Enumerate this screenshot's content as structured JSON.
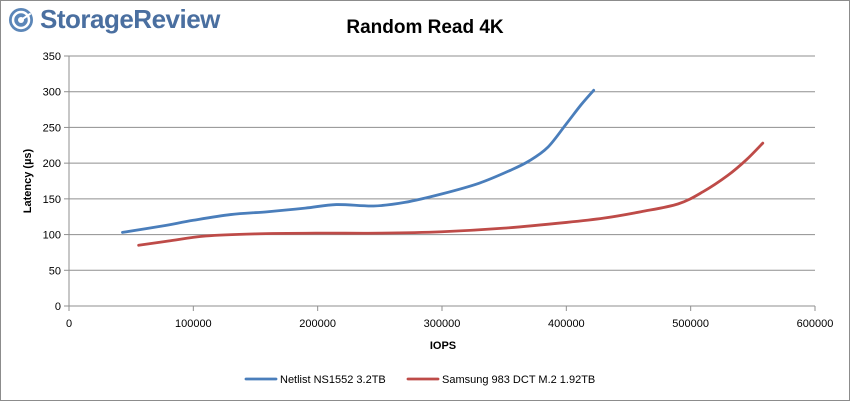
{
  "brand": {
    "name": "StorageReview"
  },
  "chart_data": {
    "type": "line",
    "title": "Random Read 4K",
    "xlabel": "IOPS",
    "ylabel": "Latency (µs)",
    "xlim": [
      0,
      600000
    ],
    "ylim": [
      0,
      350
    ],
    "xticks": [
      0,
      100000,
      200000,
      300000,
      400000,
      500000,
      600000
    ],
    "yticks": [
      0,
      50,
      100,
      150,
      200,
      250,
      300,
      350
    ],
    "grid": "horizontal",
    "legend_position": "bottom",
    "series": [
      {
        "name": "Netlist NS1552 3.2TB",
        "color": "#4a7ebb",
        "points": [
          [
            43000,
            103
          ],
          [
            75000,
            112
          ],
          [
            100000,
            120
          ],
          [
            130000,
            128
          ],
          [
            160000,
            132
          ],
          [
            190000,
            137
          ],
          [
            215000,
            142
          ],
          [
            245000,
            140
          ],
          [
            270000,
            145
          ],
          [
            300000,
            157
          ],
          [
            330000,
            172
          ],
          [
            355000,
            190
          ],
          [
            370000,
            203
          ],
          [
            385000,
            222
          ],
          [
            400000,
            255
          ],
          [
            412000,
            282
          ],
          [
            422000,
            302
          ]
        ]
      },
      {
        "name": "Samsung 983 DCT M.2 1.92TB",
        "color": "#be4b48",
        "points": [
          [
            56000,
            85
          ],
          [
            80000,
            91
          ],
          [
            110000,
            98
          ],
          [
            150000,
            101
          ],
          [
            200000,
            102
          ],
          [
            250000,
            102
          ],
          [
            300000,
            104
          ],
          [
            350000,
            109
          ],
          [
            400000,
            117
          ],
          [
            430000,
            123
          ],
          [
            460000,
            132
          ],
          [
            490000,
            143
          ],
          [
            510000,
            160
          ],
          [
            530000,
            183
          ],
          [
            545000,
            205
          ],
          [
            558000,
            228
          ]
        ]
      }
    ]
  }
}
